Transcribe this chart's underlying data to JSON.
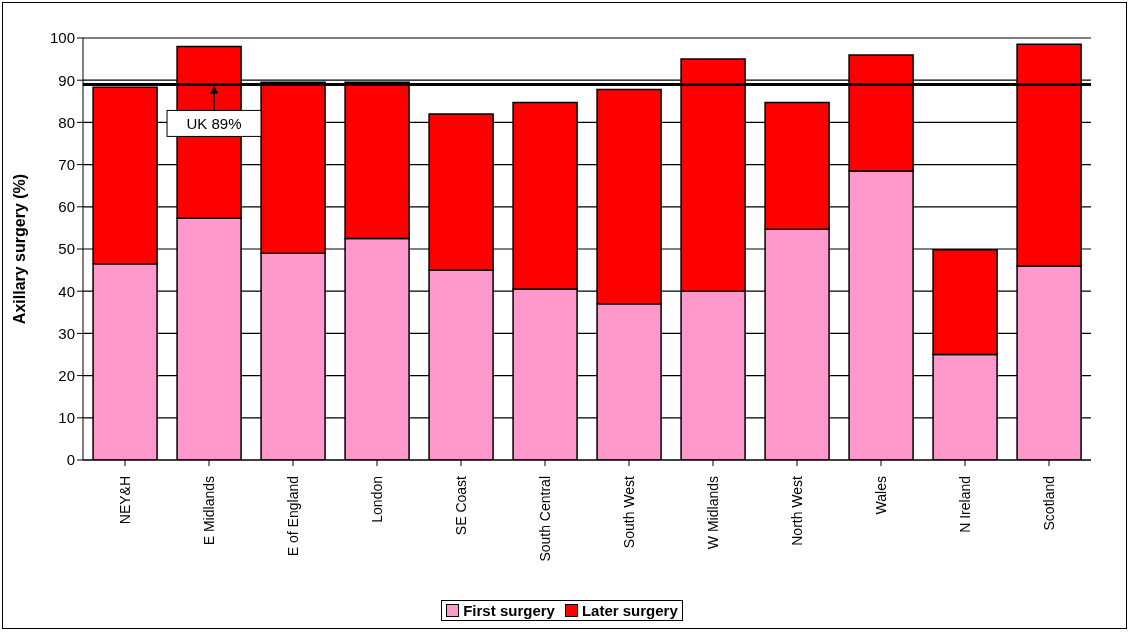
{
  "chart_data": {
    "type": "bar",
    "stacked": true,
    "ylabel": "Axillary surgery (%)",
    "categories": [
      "NEY&H",
      "E Midlands",
      "E of England",
      "London",
      "SE Coast",
      "South Central",
      "South West",
      "W Midlands",
      "North West",
      "Wales",
      "N Ireland",
      "Scotland"
    ],
    "series": [
      {
        "name": "First surgery",
        "color": "#ff99cc",
        "values": [
          46.5,
          57.3,
          49,
          52.5,
          45,
          40.5,
          37,
          40,
          54.7,
          68.5,
          25,
          46
        ]
      },
      {
        "name": "Later surgery",
        "color": "#ff0000",
        "values": [
          41.8,
          40.7,
          40.5,
          37,
          37,
          44.2,
          50.8,
          55,
          30,
          27.5,
          24.8,
          52.5
        ]
      }
    ],
    "ylim": [
      0,
      100
    ],
    "yticks": [
      0,
      10,
      20,
      30,
      40,
      50,
      60,
      70,
      80,
      90,
      100
    ],
    "grid": "y",
    "legend": "bottom",
    "ref_lines": [
      {
        "axis": "y",
        "value": 89,
        "label": "UK 89%"
      }
    ]
  }
}
